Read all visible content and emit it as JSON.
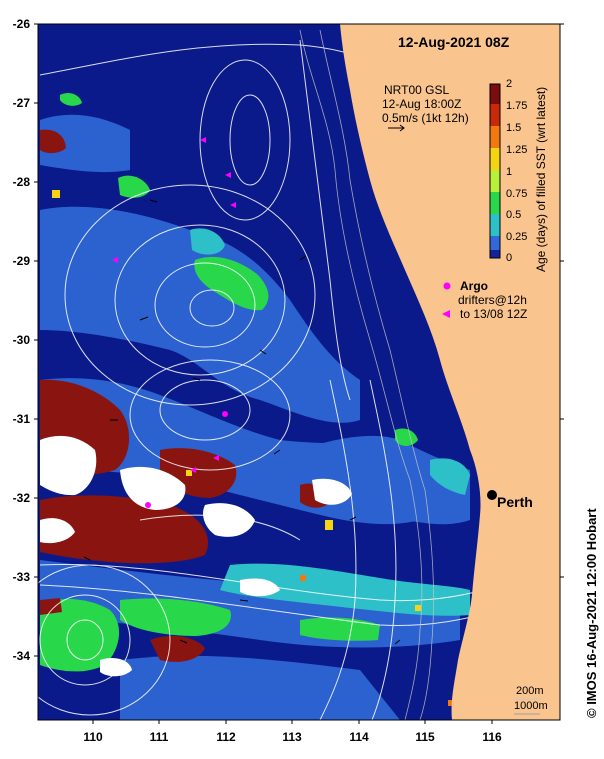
{
  "map": {
    "title": "12-Aug-2021 08Z",
    "lat_labels": [
      "-26",
      "-27",
      "-28",
      "-29",
      "-30",
      "-31",
      "-32",
      "-33",
      "-34"
    ],
    "lon_labels": [
      "110",
      "111",
      "112",
      "113",
      "114",
      "115",
      "116"
    ],
    "lat_range": [
      -34.8,
      -26.0
    ],
    "lon_range": [
      109.2,
      116.95
    ],
    "place_label": "Perth",
    "land_color": "#f9c48e",
    "ocean_color": "#0b1a8a",
    "contour_color": "#ffffff"
  },
  "current_legend": {
    "line1": "NRT00 GSL",
    "line2": "12-Aug 18:00Z",
    "line3": "0.5m/s (1kt 12h)"
  },
  "argo_legend": {
    "title": "Argo",
    "line1": "drifters@12h",
    "line2": "to 13/08 12Z",
    "marker_color": "#ff00ff"
  },
  "colorbar": {
    "title": "Age (days) of filled SST (wrt latest)",
    "ticks": [
      "2",
      "1.75",
      "1.5",
      "1.25",
      "1",
      "0.75",
      "0.5",
      "0.25",
      "0"
    ],
    "colors": [
      "#7a0d0d",
      "#c62a08",
      "#f07a10",
      "#f5d412",
      "#b8f03a",
      "#28d84a",
      "#2ec0c8",
      "#2f6ad8",
      "#14239a"
    ]
  },
  "bathymetry_legend": {
    "line1": "200m",
    "line2": "1000m"
  },
  "credit": "© IMOS 16-Aug-2021 12:00 Hobart"
}
